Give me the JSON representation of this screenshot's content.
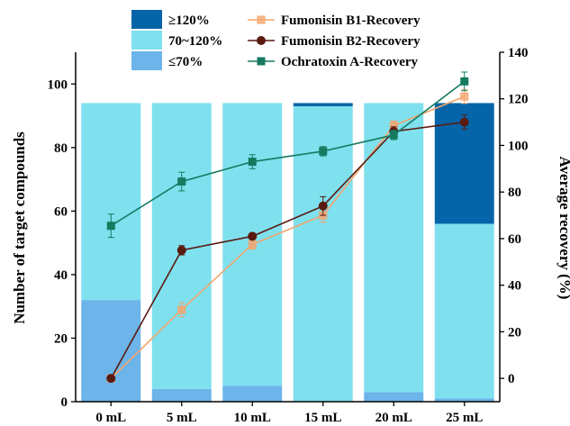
{
  "chart_data": {
    "type": "bar",
    "categories": [
      "0 mL",
      "5 mL",
      "10 mL",
      "15 mL",
      "20 mL",
      "25 mL"
    ],
    "xlabel": "",
    "ylabel": "Number of target compounds",
    "y2label": "Average recovery (%)",
    "ylim": [
      0,
      110
    ],
    "y2lim": [
      -10,
      140
    ],
    "yticks": [
      0,
      20,
      40,
      60,
      80,
      100
    ],
    "y2ticks": [
      0,
      20,
      40,
      60,
      80,
      100,
      120,
      140
    ],
    "stack_series": [
      {
        "name": "≤70%",
        "color": "#6cb4ea",
        "values": [
          32,
          4,
          5,
          0,
          3,
          1
        ]
      },
      {
        "name": "70~120%",
        "color": "#7fe0ee",
        "values": [
          62,
          90,
          89,
          93,
          91,
          55
        ]
      },
      {
        "name": "≥120%",
        "color": "#0565a8",
        "values": [
          0,
          0,
          0,
          1,
          0,
          38
        ]
      }
    ],
    "line_series": [
      {
        "name": "Fumonisin B1-Recovery",
        "color": "#f4a56c",
        "marker": "square-open",
        "values": [
          0,
          29.5,
          57.5,
          70,
          108.5,
          121
        ],
        "errors": [
          0,
          3,
          2,
          3,
          2,
          3
        ]
      },
      {
        "name": "Fumonisin B2-Recovery",
        "color": "#5a1a10",
        "marker": "circle",
        "values": [
          0,
          55,
          61,
          74,
          106,
          110
        ],
        "errors": [
          0,
          2,
          1,
          4,
          2,
          3
        ]
      },
      {
        "name": "Ochratoxin A-Recovery",
        "color": "#157a60",
        "marker": "square",
        "values": [
          65.5,
          84.5,
          93,
          97.5,
          104.5,
          127.5
        ],
        "errors": [
          5,
          4,
          3,
          2,
          2,
          4
        ]
      }
    ],
    "legend_order": [
      "≥120%",
      "Fumonisin B1-Recovery",
      "70~120%",
      "Fumonisin B2-Recovery",
      "≤70%",
      "Ochratoxin A-Recovery"
    ],
    "legend_position": "top",
    "grid": false
  }
}
